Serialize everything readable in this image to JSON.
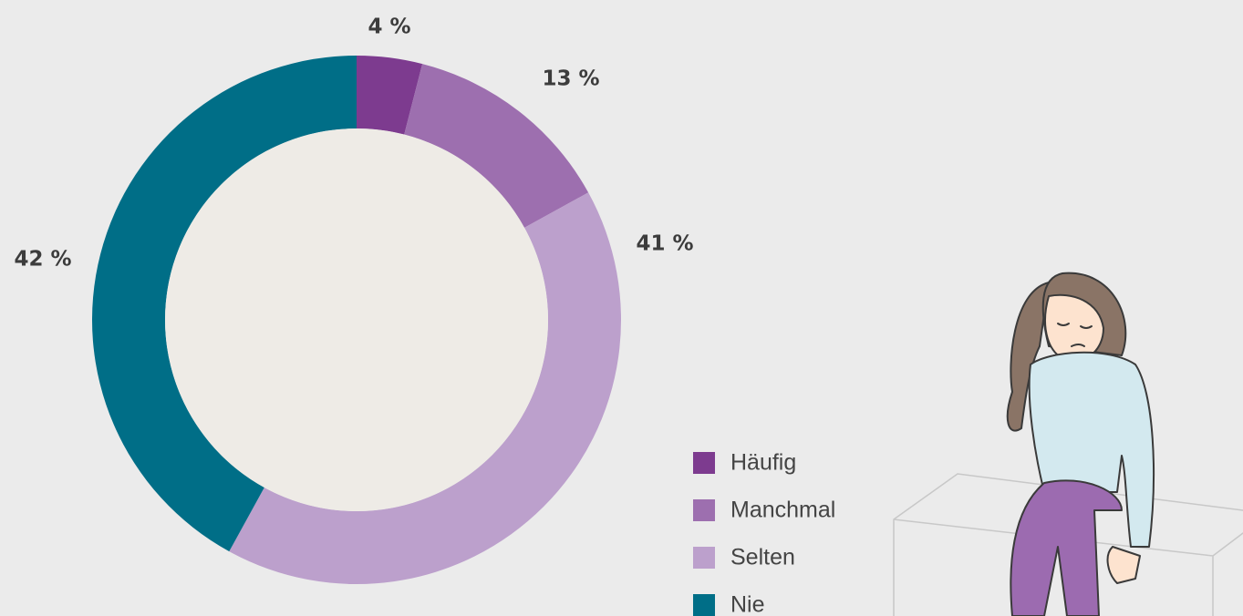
{
  "chart_data": {
    "type": "pie",
    "categories": [
      "Häufig",
      "Manchmal",
      "Selten",
      "Nie"
    ],
    "values": [
      4,
      13,
      41,
      42
    ],
    "value_labels": [
      "4 %",
      "13 %",
      "41 %",
      "42 %"
    ],
    "colors": [
      "#7d3b8f",
      "#9d6faf",
      "#bca0cc",
      "#006e87"
    ],
    "donut": true,
    "legend": "bottom-right"
  }
}
